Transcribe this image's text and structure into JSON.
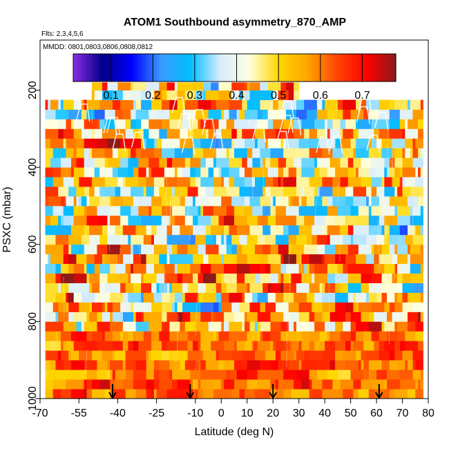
{
  "chart_data": {
    "type": "heatmap",
    "title": "ATOM1 Southbound asymmetry_870_AMP",
    "flights_label": "Flts: 2,3,4,5,6",
    "dates_label": "MMDD: 0801,0803,0806,0808,0812",
    "xlabel": "Latitude (deg N)",
    "ylabel": "PSXC (mbar)",
    "xlim": [
      -70,
      80
    ],
    "ylim": [
      1000,
      70
    ],
    "x_ticks": [
      -70,
      -55,
      -40,
      -25,
      -10,
      0,
      10,
      20,
      30,
      40,
      50,
      60,
      70,
      80
    ],
    "x_tick_labels": [
      "-70",
      "-55",
      "-40",
      "-25",
      "-10",
      "0",
      "10",
      "20",
      "30",
      "40",
      "50",
      "60",
      "70",
      "80"
    ],
    "y_ticks": [
      200,
      400,
      600,
      800,
      1000
    ],
    "y_tick_labels": [
      "200",
      "400",
      "600",
      "800",
      "1000"
    ],
    "colorbar": {
      "range": [
        0.01,
        0.78
      ],
      "ticks": [
        0.1,
        0.2,
        0.3,
        0.4,
        0.5,
        0.6,
        0.7
      ],
      "tick_labels": [
        "0.1",
        "0.2",
        "0.3",
        "0.4",
        "0.5",
        "0.6",
        "0.7"
      ],
      "colors": [
        "#8a2be2",
        "#00008b",
        "#0000ff",
        "#3a9cff",
        "#00bfff",
        "#d6ecff",
        "#ffffe0",
        "#ffd700",
        "#ffa500",
        "#ff4500",
        "#ff0000",
        "#8b1a1a"
      ]
    },
    "flight_markers_latitude": [
      -42,
      -12,
      20,
      61
    ],
    "pressure_levels": [
      1000,
      975,
      950,
      925,
      900,
      875,
      850,
      825,
      800,
      775,
      750,
      725,
      700,
      675,
      650,
      625,
      600,
      575,
      550,
      525,
      500,
      475,
      450,
      425,
      400,
      375,
      350,
      325,
      300,
      275,
      250,
      225,
      200,
      180
    ],
    "data_coverage": {
      "lat_min": -68,
      "lat_max": 78,
      "upper_band_lat_min": -50,
      "upper_band_lat_max": 30,
      "upper_band_top_pressure": 160
    },
    "pattern_notes": "Gridded asymmetry values 0.1-0.78 across latitude and pressure; low-level (>800 mbar) mostly 0.6-0.7 (red/orange); mid-levels mixed blue to red; upper band near 200 mbar mostly 0.4-0.55 (light blue to yellow)."
  }
}
